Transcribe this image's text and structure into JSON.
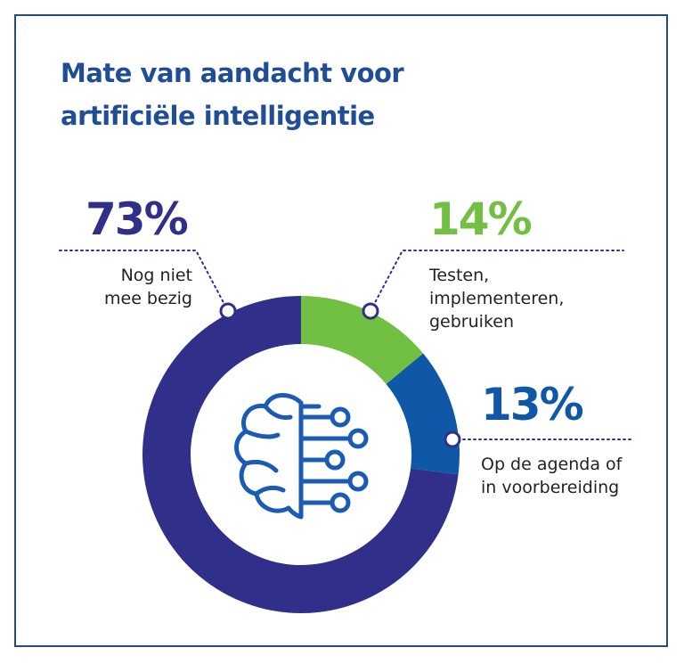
{
  "colors": {
    "navy": "#30308a",
    "green": "#72c043",
    "blue": "#0f58a8",
    "title": "#1f4e96",
    "icon": "#1a5cb5",
    "frame": "#2a4a7a"
  },
  "icon": "brain-circuit-icon",
  "chart_data": {
    "type": "pie",
    "title": "Mate van aandacht voor artificiële intelligentie",
    "title_lines": [
      "Mate van aandacht voor",
      "artificiële intelligentie"
    ],
    "slices": [
      {
        "value": 14,
        "label": "14%",
        "name_lines": [
          "Testen,",
          "implementeren,",
          "gebruiken"
        ],
        "color": "#72c043"
      },
      {
        "value": 13,
        "label": "13%",
        "name_lines": [
          "Op de agenda of",
          "in voorbereiding"
        ],
        "color": "#0f58a8"
      },
      {
        "value": 73,
        "label": "73%",
        "name_lines": [
          "Nog niet",
          "mee bezig"
        ],
        "color": "#30308a"
      }
    ],
    "style": "donut",
    "legend": "none"
  }
}
